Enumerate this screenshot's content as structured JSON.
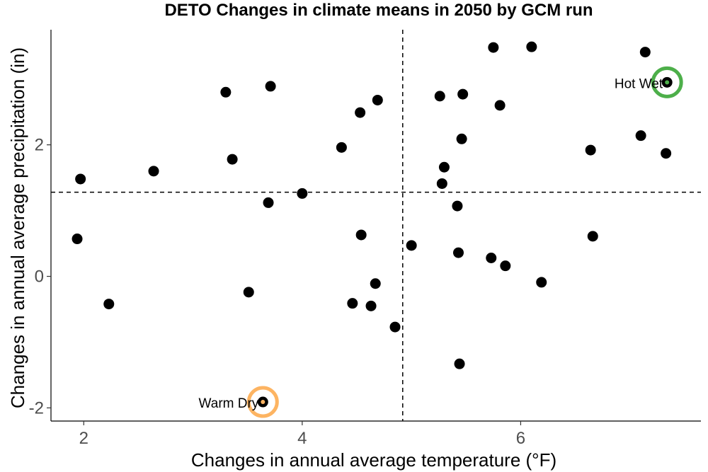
{
  "chart_data": {
    "type": "scatter",
    "title": "DETO Changes in climate means in 2050 by GCM run",
    "xlabel": "Changes in annual average temperature (°F)",
    "ylabel": "Changes in annual average precipitation (in)",
    "xlim": [
      1.7,
      7.65
    ],
    "ylim": [
      -2.2,
      3.75
    ],
    "xticks": [
      2,
      4,
      6
    ],
    "yticks": [
      -2,
      0,
      2
    ],
    "grid": false,
    "reference_lines": {
      "x": 4.92,
      "y": 1.28
    },
    "points": [
      {
        "x": 1.94,
        "y": 0.57
      },
      {
        "x": 1.97,
        "y": 1.48
      },
      {
        "x": 2.23,
        "y": -0.42
      },
      {
        "x": 2.64,
        "y": 1.6
      },
      {
        "x": 3.3,
        "y": 2.8
      },
      {
        "x": 3.36,
        "y": 1.78
      },
      {
        "x": 3.51,
        "y": -0.24
      },
      {
        "x": 3.64,
        "y": -1.91
      },
      {
        "x": 3.69,
        "y": 1.12
      },
      {
        "x": 3.71,
        "y": 2.89
      },
      {
        "x": 4.0,
        "y": 1.26
      },
      {
        "x": 4.36,
        "y": 1.96
      },
      {
        "x": 4.46,
        "y": -0.41
      },
      {
        "x": 4.53,
        "y": 2.49
      },
      {
        "x": 4.54,
        "y": 0.63
      },
      {
        "x": 4.63,
        "y": -0.45
      },
      {
        "x": 4.67,
        "y": -0.11
      },
      {
        "x": 4.69,
        "y": 2.68
      },
      {
        "x": 4.85,
        "y": -0.77
      },
      {
        "x": 5.0,
        "y": 0.47
      },
      {
        "x": 5.26,
        "y": 2.74
      },
      {
        "x": 5.28,
        "y": 1.41
      },
      {
        "x": 5.3,
        "y": 1.66
      },
      {
        "x": 5.42,
        "y": 1.07
      },
      {
        "x": 5.43,
        "y": 0.36
      },
      {
        "x": 5.44,
        "y": -1.33
      },
      {
        "x": 5.46,
        "y": 2.09
      },
      {
        "x": 5.47,
        "y": 2.77
      },
      {
        "x": 5.73,
        "y": 0.28
      },
      {
        "x": 5.75,
        "y": 3.48
      },
      {
        "x": 5.81,
        "y": 2.6
      },
      {
        "x": 5.86,
        "y": 0.16
      },
      {
        "x": 6.1,
        "y": 3.49
      },
      {
        "x": 6.19,
        "y": -0.09
      },
      {
        "x": 6.64,
        "y": 1.92
      },
      {
        "x": 6.66,
        "y": 0.61
      },
      {
        "x": 7.1,
        "y": 2.14
      },
      {
        "x": 7.14,
        "y": 3.41
      },
      {
        "x": 7.33,
        "y": 1.87
      },
      {
        "x": 7.34,
        "y": 2.95
      }
    ],
    "highlights": [
      {
        "label": "Hot Wet",
        "x": 7.34,
        "y": 2.95,
        "color": "#4daf4a"
      },
      {
        "label": "Warm Dry",
        "x": 3.64,
        "y": -1.91,
        "color": "#fdb462"
      }
    ],
    "point_color": "#000000"
  }
}
